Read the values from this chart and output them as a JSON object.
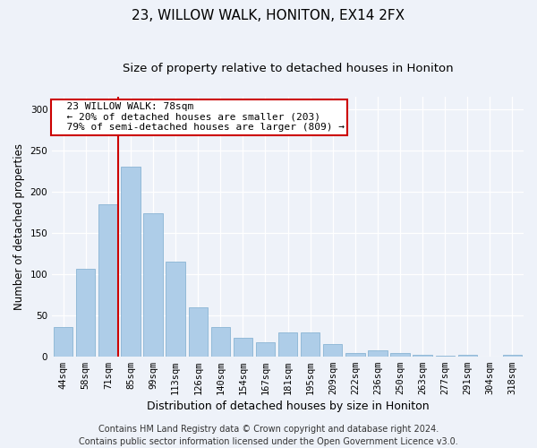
{
  "title": "23, WILLOW WALK, HONITON, EX14 2FX",
  "subtitle": "Size of property relative to detached houses in Honiton",
  "xlabel": "Distribution of detached houses by size in Honiton",
  "ylabel": "Number of detached properties",
  "categories": [
    "44sqm",
    "58sqm",
    "71sqm",
    "85sqm",
    "99sqm",
    "113sqm",
    "126sqm",
    "140sqm",
    "154sqm",
    "167sqm",
    "181sqm",
    "195sqm",
    "209sqm",
    "222sqm",
    "236sqm",
    "250sqm",
    "263sqm",
    "277sqm",
    "291sqm",
    "304sqm",
    "318sqm"
  ],
  "values": [
    35,
    106,
    184,
    230,
    173,
    115,
    59,
    35,
    22,
    17,
    29,
    29,
    15,
    4,
    7,
    4,
    2,
    1,
    2,
    0,
    2
  ],
  "bar_color": "#aecde8",
  "bar_edgecolor": "#8ab4d4",
  "red_line_x": 2.43,
  "red_line_color": "#cc0000",
  "ylim": [
    0,
    315
  ],
  "yticks": [
    0,
    50,
    100,
    150,
    200,
    250,
    300
  ],
  "annotation_text": "  23 WILLOW WALK: 78sqm\n  ← 20% of detached houses are smaller (203)\n  79% of semi-detached houses are larger (809) →",
  "annotation_box_color": "#ffffff",
  "annotation_box_edgecolor": "#cc0000",
  "footer_line1": "Contains HM Land Registry data © Crown copyright and database right 2024.",
  "footer_line2": "Contains public sector information licensed under the Open Government Licence v3.0.",
  "background_color": "#eef2f9",
  "grid_color": "#ffffff",
  "title_fontsize": 11,
  "subtitle_fontsize": 9.5,
  "xlabel_fontsize": 9,
  "ylabel_fontsize": 8.5,
  "tick_fontsize": 7.5,
  "footer_fontsize": 7,
  "annotation_fontsize": 8
}
